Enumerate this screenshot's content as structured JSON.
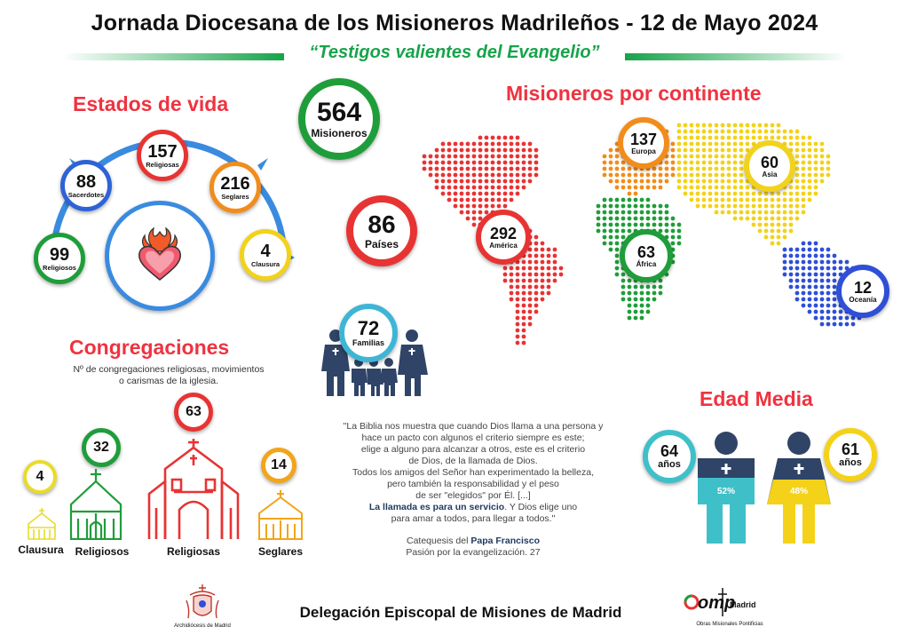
{
  "header": {
    "title": "Jornada Diocesana de los Misioneros Madrileños - 12 de Mayo 2024",
    "subtitle": "“Testigos valientes del Evangelio”"
  },
  "estados": {
    "heading": "Estados de vida",
    "items": [
      {
        "value": "99",
        "label": "Religiosos",
        "color": "#1f9d3a"
      },
      {
        "value": "88",
        "label": "Sacerdotes",
        "color": "#2e63d6"
      },
      {
        "value": "157",
        "label": "Religiosas",
        "color": "#e83333"
      },
      {
        "value": "216",
        "label": "Seglares",
        "color": "#f28c1a"
      },
      {
        "value": "4",
        "label": "Clausura",
        "color": "#f2d21a"
      }
    ]
  },
  "totals": {
    "misioneros": {
      "value": "564",
      "label": "Misioneros"
    },
    "paises": {
      "value": "86",
      "label": "Países"
    },
    "familias": {
      "value": "72",
      "label": "Familias"
    }
  },
  "continentes": {
    "heading": "Misioneros por continente",
    "items": [
      {
        "value": "292",
        "label": "América",
        "color": "#e83333"
      },
      {
        "value": "137",
        "label": "Europa",
        "color": "#f28c1a"
      },
      {
        "value": "60",
        "label": "Asia",
        "color": "#f2d21a"
      },
      {
        "value": "63",
        "label": "África",
        "color": "#1f9d3a"
      },
      {
        "value": "12",
        "label": "Oceanía",
        "color": "#2e4fd6"
      }
    ]
  },
  "congregaciones": {
    "heading": "Congregaciones",
    "note_line1": "Nº de congregaciones religiosas, movimientos",
    "note_line2": "o carismas de la iglesia.",
    "items": [
      {
        "value": "4",
        "label": "Clausura",
        "color": "#e8dc2a"
      },
      {
        "value": "32",
        "label": "Religiosos",
        "color": "#1f9d3a"
      },
      {
        "value": "63",
        "label": "Religiosas",
        "color": "#e83333"
      },
      {
        "value": "14",
        "label": "Seglares",
        "color": "#f2a51a"
      }
    ]
  },
  "quote": {
    "lines": [
      "\"La Biblia nos muestra que cuando Dios llama a una persona y",
      "hace un pacto con algunos el criterio siempre es este;",
      "elige a alguno para alcanzar a otros, este es el criterio",
      "de Dios, de la llamada de Dios.",
      "Todos los amigos del Señor han experimentado la belleza,",
      "pero también la responsabilidad y el peso",
      "de ser \"elegidos\" por Él. [...]"
    ],
    "bold_part": "La llamada es para un servicio",
    "after_bold": ". Y Dios elige uno",
    "last_line": "para amar a todos, para llegar a todos.\"",
    "source_prefix": "Catequesis del ",
    "source_bold": "Papa Francisco",
    "source_line2": "Pasión por la evangelización. 27"
  },
  "edad": {
    "heading": "Edad Media",
    "male": {
      "value": "64",
      "unit": "años",
      "percent": "52%",
      "color": "#3fc0c9"
    },
    "female": {
      "value": "61",
      "unit": "años",
      "percent": "48%",
      "color": "#f5d21a"
    }
  },
  "footer": {
    "text": "Delegación Episcopal de Misiones de Madrid",
    "left_logo": "Archidiócesis de Madrid",
    "right_logo_brand": "omp",
    "right_logo_city": "Madrid",
    "right_logo_caption": "Obras Misionales Pontificias"
  }
}
